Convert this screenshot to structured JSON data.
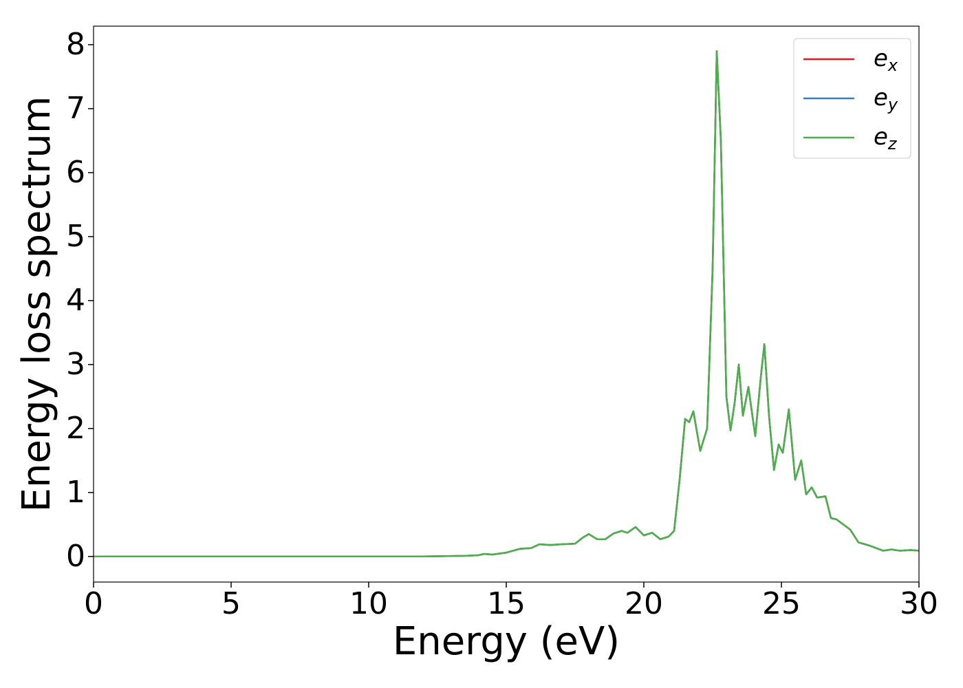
{
  "chart_data": {
    "type": "line",
    "x_label": "Energy (eV)",
    "y_label": "Energy loss spectrum",
    "x": [
      0,
      12,
      13.5,
      14,
      14.2,
      14.5,
      15,
      15.5,
      15.9,
      16.2,
      16.6,
      17,
      17.5,
      17.8,
      18,
      18.3,
      18.6,
      18.9,
      19.2,
      19.4,
      19.7,
      20,
      20.3,
      20.6,
      20.9,
      21.1,
      21.3,
      21.5,
      21.65,
      21.8,
      22.05,
      22.3,
      22.5,
      22.65,
      22.8,
      23.0,
      23.15,
      23.3,
      23.45,
      23.6,
      23.8,
      24.05,
      24.25,
      24.38,
      24.55,
      24.73,
      24.9,
      25.05,
      25.27,
      25.5,
      25.72,
      25.9,
      26.1,
      26.3,
      26.6,
      26.8,
      27,
      27.5,
      27.8,
      28.2,
      28.7,
      29,
      29.3,
      29.7,
      30
    ],
    "series": [
      {
        "name": "e_x",
        "color": "#e41a1c",
        "values": [
          0,
          0,
          0.01,
          0.02,
          0.04,
          0.03,
          0.06,
          0.12,
          0.13,
          0.19,
          0.18,
          0.19,
          0.2,
          0.3,
          0.35,
          0.27,
          0.27,
          0.36,
          0.4,
          0.37,
          0.46,
          0.33,
          0.37,
          0.27,
          0.31,
          0.4,
          1.2,
          2.15,
          2.1,
          2.27,
          1.65,
          2.0,
          4.5,
          7.9,
          6.5,
          2.5,
          1.97,
          2.4,
          3.0,
          2.2,
          2.65,
          1.88,
          2.8,
          3.32,
          2.2,
          1.35,
          1.75,
          1.62,
          2.3,
          1.2,
          1.5,
          0.97,
          1.08,
          0.92,
          0.94,
          0.6,
          0.58,
          0.42,
          0.22,
          0.17,
          0.09,
          0.11,
          0.09,
          0.1,
          0.09
        ]
      },
      {
        "name": "e_y",
        "color": "#377eb8",
        "values": [
          0,
          0,
          0.01,
          0.02,
          0.04,
          0.03,
          0.06,
          0.12,
          0.13,
          0.19,
          0.18,
          0.19,
          0.2,
          0.3,
          0.35,
          0.27,
          0.27,
          0.36,
          0.4,
          0.37,
          0.46,
          0.33,
          0.37,
          0.27,
          0.31,
          0.4,
          1.2,
          2.15,
          2.1,
          2.27,
          1.65,
          2.0,
          4.5,
          7.9,
          6.5,
          2.5,
          1.97,
          2.4,
          3.0,
          2.2,
          2.65,
          1.88,
          2.8,
          3.32,
          2.2,
          1.35,
          1.75,
          1.62,
          2.3,
          1.2,
          1.5,
          0.97,
          1.08,
          0.92,
          0.94,
          0.6,
          0.58,
          0.42,
          0.22,
          0.17,
          0.09,
          0.11,
          0.09,
          0.1,
          0.09
        ]
      },
      {
        "name": "e_z",
        "color": "#4daf4a",
        "values": [
          0,
          0,
          0.01,
          0.02,
          0.04,
          0.03,
          0.06,
          0.12,
          0.13,
          0.19,
          0.18,
          0.19,
          0.2,
          0.3,
          0.35,
          0.27,
          0.27,
          0.36,
          0.4,
          0.37,
          0.46,
          0.33,
          0.37,
          0.27,
          0.31,
          0.4,
          1.2,
          2.15,
          2.1,
          2.27,
          1.65,
          2.0,
          4.5,
          7.9,
          6.5,
          2.5,
          1.97,
          2.4,
          3.0,
          2.2,
          2.65,
          1.88,
          2.8,
          3.32,
          2.2,
          1.35,
          1.75,
          1.62,
          2.3,
          1.2,
          1.5,
          0.97,
          1.08,
          0.92,
          0.94,
          0.6,
          0.58,
          0.42,
          0.22,
          0.17,
          0.09,
          0.11,
          0.09,
          0.1,
          0.09
        ]
      }
    ],
    "xlim": [
      0,
      30
    ],
    "xticks": [
      0,
      5,
      10,
      15,
      20,
      25,
      30
    ],
    "ylim": [
      -0.4,
      8.29
    ],
    "yticks": [
      0,
      1,
      2,
      3,
      4,
      5,
      6,
      7,
      8
    ],
    "legend": "upper right"
  }
}
